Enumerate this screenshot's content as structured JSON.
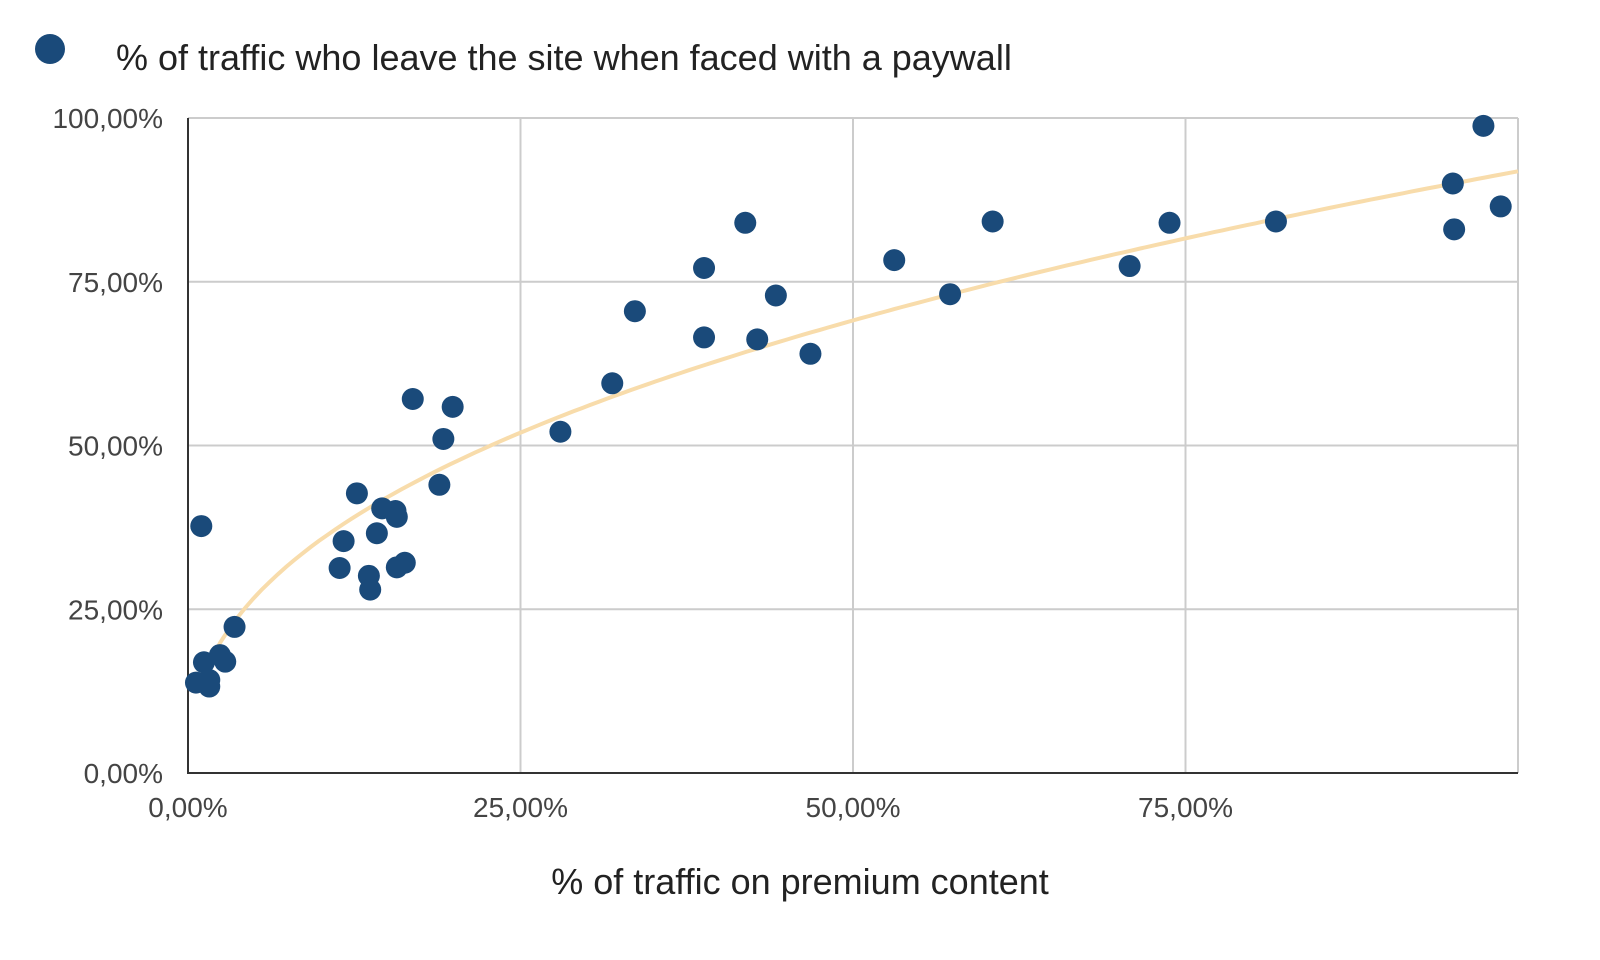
{
  "chart_data": {
    "type": "scatter",
    "title": "",
    "xlabel": "% of traffic on premium content",
    "ylabel": "",
    "xlim": [
      0,
      100
    ],
    "ylim": [
      0,
      100
    ],
    "grid": true,
    "legend_position": "top-left",
    "x_ticks": [
      0,
      25,
      50,
      75
    ],
    "x_tick_labels": [
      "0,00%",
      "25,00%",
      "50,00%",
      "75,00%"
    ],
    "y_ticks": [
      0,
      25,
      50,
      75,
      100
    ],
    "y_tick_labels": [
      "0,00%",
      "25,00%",
      "50,00%",
      "75,00%",
      "100,00%"
    ],
    "series": [
      {
        "name": "% of traffic who leave the site when faced with a paywall",
        "color": "#1a4a7a",
        "points": [
          [
            0.6,
            13.8
          ],
          [
            1.0,
            37.7
          ],
          [
            1.2,
            16.9
          ],
          [
            1.6,
            13.2
          ],
          [
            1.6,
            14.2
          ],
          [
            2.4,
            18.0
          ],
          [
            2.8,
            17.0
          ],
          [
            3.5,
            22.3
          ],
          [
            11.4,
            31.3
          ],
          [
            11.7,
            35.4
          ],
          [
            12.7,
            42.7
          ],
          [
            13.6,
            30.1
          ],
          [
            13.7,
            28.0
          ],
          [
            14.2,
            36.6
          ],
          [
            14.6,
            40.4
          ],
          [
            15.6,
            40.0
          ],
          [
            15.7,
            39.1
          ],
          [
            15.7,
            31.4
          ],
          [
            16.3,
            32.1
          ],
          [
            16.9,
            57.1
          ],
          [
            18.9,
            44.0
          ],
          [
            19.2,
            51.0
          ],
          [
            19.9,
            55.9
          ],
          [
            28.0,
            52.1
          ],
          [
            31.9,
            59.5
          ],
          [
            33.6,
            70.5
          ],
          [
            38.8,
            77.1
          ],
          [
            38.8,
            66.5
          ],
          [
            41.9,
            84.0
          ],
          [
            42.8,
            66.2
          ],
          [
            44.2,
            72.9
          ],
          [
            46.8,
            64.0
          ],
          [
            53.1,
            78.3
          ],
          [
            57.3,
            73.1
          ],
          [
            60.5,
            84.2
          ],
          [
            70.8,
            77.4
          ],
          [
            73.8,
            84.0
          ],
          [
            81.8,
            84.2
          ],
          [
            95.1,
            90.0
          ],
          [
            95.2,
            83.0
          ],
          [
            97.4,
            98.8
          ],
          [
            98.7,
            86.5
          ]
        ]
      }
    ],
    "trendline": {
      "type": "power",
      "color": "#f8dcab",
      "coefficient": 13.84,
      "exponent": 0.411,
      "x_range": [
        1.2,
        100
      ]
    }
  }
}
